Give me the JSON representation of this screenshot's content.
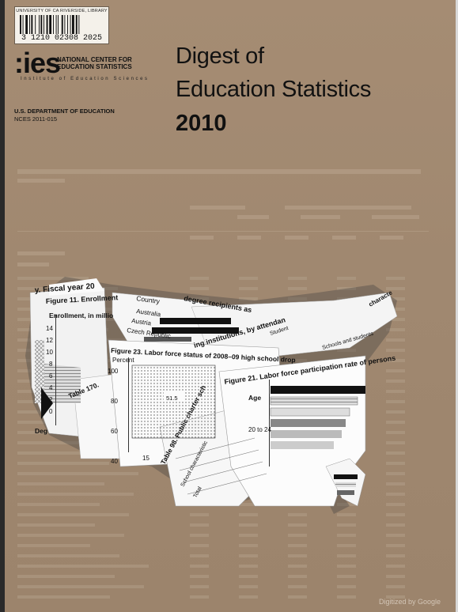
{
  "barcode": {
    "header": "UNIVERSITY OF CA RIVERSIDE, LIBRARY",
    "number": "3 1210 02308 2025"
  },
  "logo": {
    "mark": ":ies",
    "org_line1": "NATIONAL CENTER FOR",
    "org_line2": "EDUCATION STATISTICS",
    "institute": "Institute of Education Sciences"
  },
  "department": "U.S. DEPARTMENT OF EDUCATION",
  "report_number": "NCES 2011-015",
  "title": {
    "line1": "Digest of",
    "line2": "Education Statistics",
    "year": "2010"
  },
  "collage": {
    "fiscal_year": "y. Fiscal year 20",
    "figure11": "Figure 11.  Enrollment",
    "enrollment_label": "Enrollment, in millio",
    "y_ticks": [
      "14",
      "12",
      "10",
      "8",
      "6",
      "4",
      "2",
      "0"
    ],
    "degree_label": "Deg",
    "country_header": "Country",
    "countries": [
      "Australia",
      "Austria",
      "Czech Republic"
    ],
    "degree_recipients": "degree recipients as",
    "institutions": "ing institutions, by attendan",
    "student": "Student",
    "figure23": "Figure 23.  Labor force status of 2008–09 high school drop",
    "percent_label": "Percent",
    "percent_ticks": [
      "100",
      "80",
      "60",
      "40"
    ],
    "value_51_5": "51.5",
    "tick_15": "15",
    "table170": "Table 170.",
    "table98": "Table 98.  Public charter sch",
    "school_characteristic": "School characteristic",
    "total": "Total",
    "figure21": "Figure 21.  Labor force participation rate of persons",
    "age_label": "Age",
    "age_20_24": "20 to 24",
    "schools_students": "Schools and students",
    "characteristics": "characte"
  },
  "footer": {
    "digitized": "Digitized by Google"
  }
}
